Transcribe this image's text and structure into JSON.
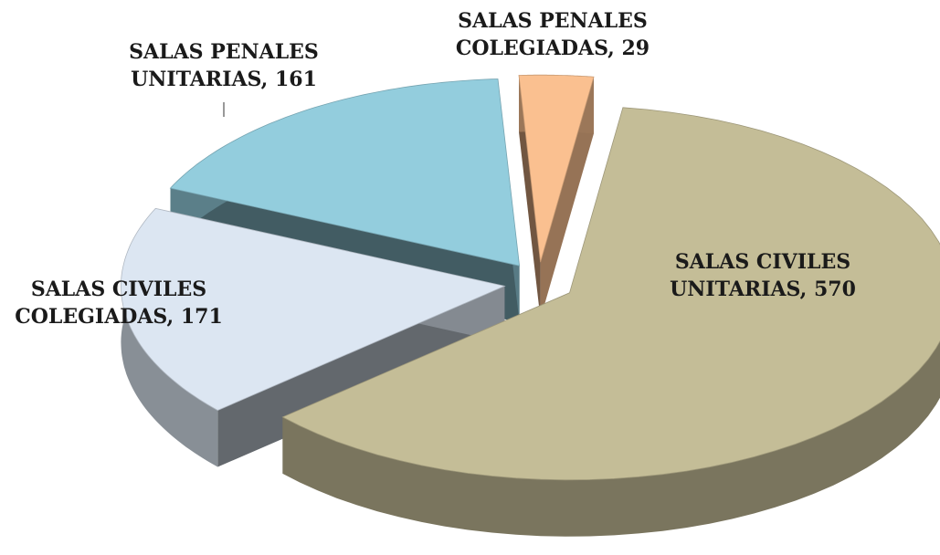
{
  "chart_data": {
    "type": "pie",
    "values": [
      570,
      171,
      161,
      29
    ],
    "value_labels": [
      "SALAS CIVILES UNITARIAS, 570",
      "SALAS CIVILES COLEGIADAS, 171",
      "SALAS PENALES UNITARIAS, 161",
      "SALAS PENALES COLEGIADAS, 29"
    ],
    "colors": [
      "#c4bd97",
      "#dce6f2",
      "#93cddd",
      "#fac090"
    ]
  }
}
